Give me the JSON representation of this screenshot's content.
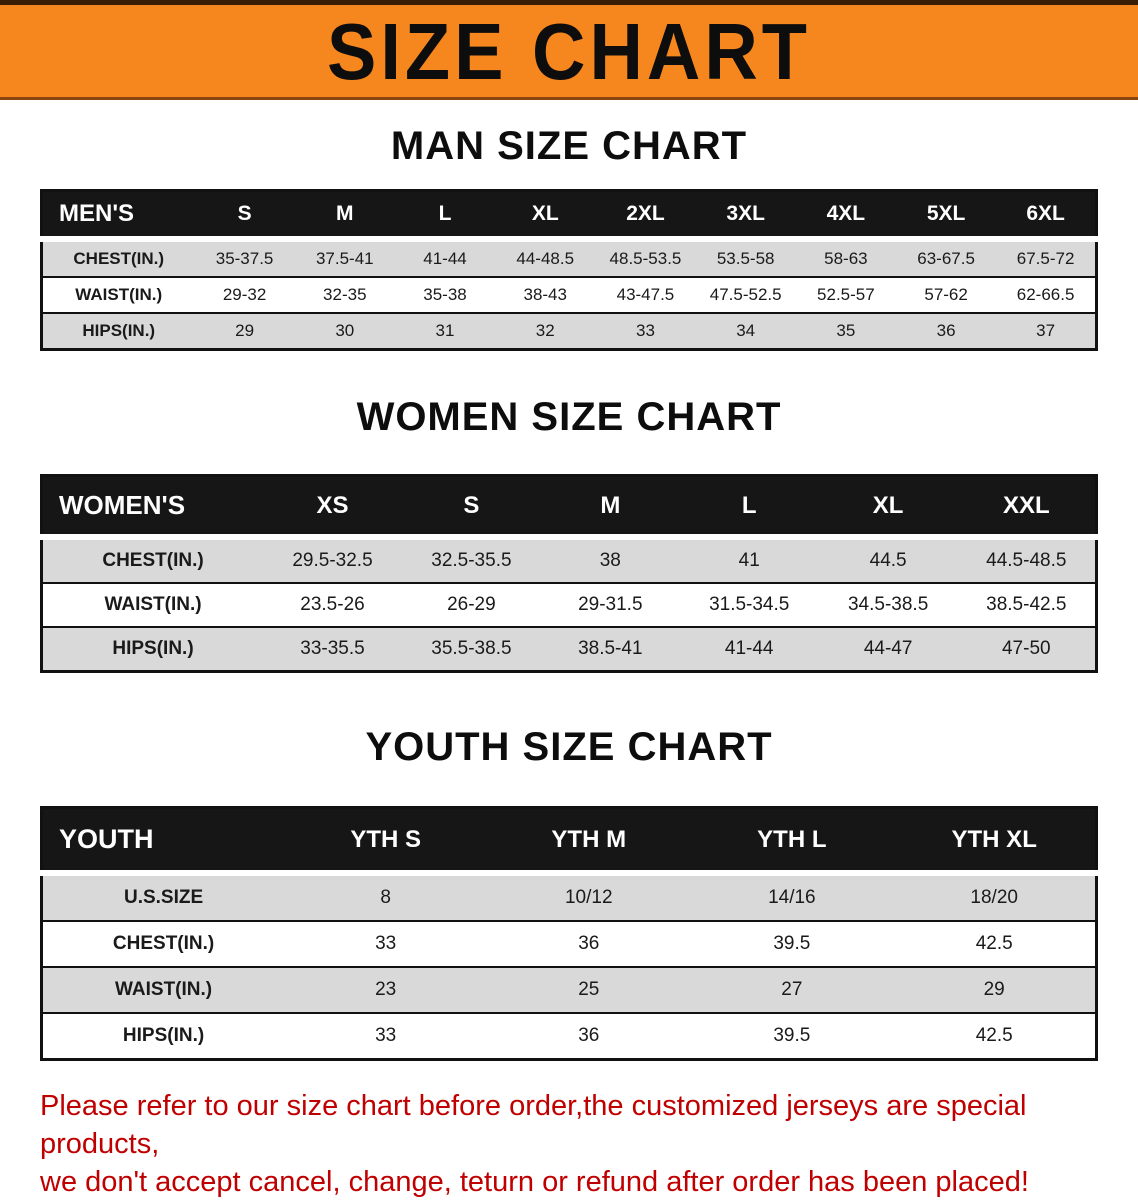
{
  "banner": {
    "title": "SIZE CHART"
  },
  "sections": [
    {
      "id": "men",
      "heading": "MAN SIZE CHART",
      "table": {
        "header": [
          "MEN'S",
          "S",
          "M",
          "L",
          "XL",
          "2XL",
          "3XL",
          "4XL",
          "5XL",
          "6XL"
        ],
        "rows": [
          [
            "CHEST(IN.)",
            "35-37.5",
            "37.5-41",
            "41-44",
            "44-48.5",
            "48.5-53.5",
            "53.5-58",
            "58-63",
            "63-67.5",
            "67.5-72"
          ],
          [
            "WAIST(IN.)",
            "29-32",
            "32-35",
            "35-38",
            "38-43",
            "43-47.5",
            "47.5-52.5",
            "52.5-57",
            "57-62",
            "62-66.5"
          ],
          [
            "HIPS(IN.)",
            "29",
            "30",
            "31",
            "32",
            "33",
            "34",
            "35",
            "36",
            "37"
          ]
        ]
      }
    },
    {
      "id": "women",
      "heading": "WOMEN SIZE CHART",
      "table": {
        "header": [
          "WOMEN'S",
          "XS",
          "S",
          "M",
          "L",
          "XL",
          "XXL"
        ],
        "rows": [
          [
            "CHEST(IN.)",
            "29.5-32.5",
            "32.5-35.5",
            "38",
            "41",
            "44.5",
            "44.5-48.5"
          ],
          [
            "WAIST(IN.)",
            "23.5-26",
            "26-29",
            "29-31.5",
            "31.5-34.5",
            "34.5-38.5",
            "38.5-42.5"
          ],
          [
            "HIPS(IN.)",
            "33-35.5",
            "35.5-38.5",
            "38.5-41",
            "41-44",
            "44-47",
            "47-50"
          ]
        ]
      }
    },
    {
      "id": "youth",
      "heading": "YOUTH SIZE CHART",
      "table": {
        "header": [
          "YOUTH",
          "YTH S",
          "YTH M",
          "YTH L",
          "YTH XL"
        ],
        "rows": [
          [
            "U.S.SIZE",
            "8",
            "10/12",
            "14/16",
            "18/20"
          ],
          [
            "CHEST(IN.)",
            "33",
            "36",
            "39.5",
            "42.5"
          ],
          [
            "WAIST(IN.)",
            "23",
            "25",
            "27",
            "29"
          ],
          [
            "HIPS(IN.)",
            "33",
            "36",
            "39.5",
            "42.5"
          ]
        ]
      }
    }
  ],
  "notice": {
    "line1": "Please refer to our size chart before order,the customized jerseys are special products,",
    "line2": "we don't accept cancel, change, teturn or refund after order has been placed!"
  },
  "colors": {
    "banner_bg": "#F6861E",
    "table_header_bg": "#161616",
    "row_alt_bg": "#D9D9D9",
    "notice_text": "#C00000"
  }
}
